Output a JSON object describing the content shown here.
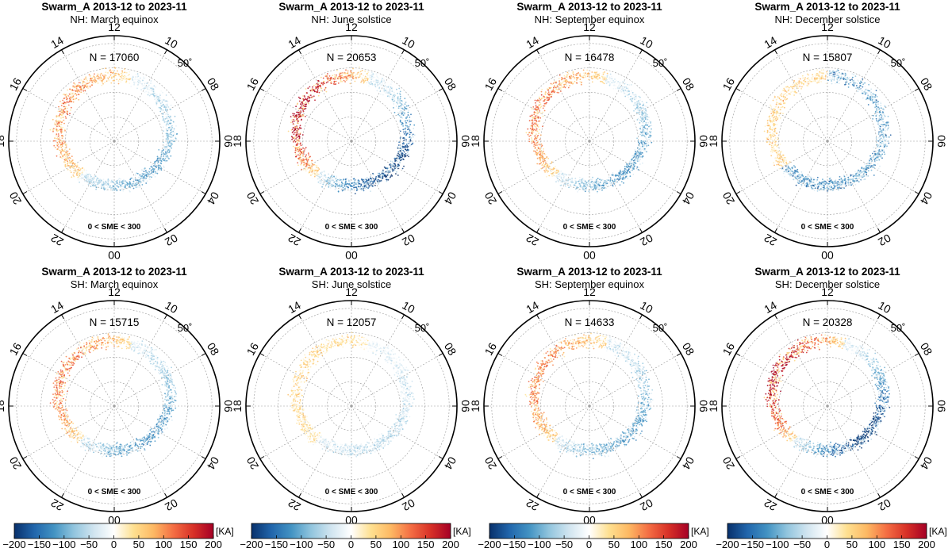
{
  "figure": {
    "panel_title": "Swarm_A 2013-12 to 2023-11",
    "hour_labels": [
      "12",
      "14",
      "16",
      "18",
      "20",
      "22",
      "00",
      "02",
      "04",
      "06",
      "08",
      "10"
    ],
    "latitude_label": "50˚",
    "condition": "0 < SME < 300"
  },
  "colorbar": {
    "unit": "[KA]",
    "tick_labels": [
      "−200",
      "−150",
      "−100",
      "−50",
      "0",
      "50",
      "100",
      "150",
      "200"
    ],
    "colors": [
      "#08306b",
      "#2166ac",
      "#4393c3",
      "#92c5de",
      "#d1e5f0",
      "#ffffff",
      "#fee090",
      "#fdb863",
      "#f46d43",
      "#d73027",
      "#a50026"
    ]
  },
  "chart_data": [
    {
      "type": "scatter",
      "title": "Swarm_A 2013-12 to 2023-11",
      "subtitle": "NH: March equinox",
      "annotation": "N = 17060",
      "condition": "0 < SME < 300",
      "axis": "magnetic local time (hours), polar",
      "lat_ring": "50˚",
      "clim": [
        -200,
        200
      ],
      "colorbar_label": "[KA]",
      "pattern": "positive (orange) on dusk side 12–21 MLT, negative (blue) on dawn/night side 22–10 MLT",
      "intensity": 0.35
    },
    {
      "type": "scatter",
      "title": "Swarm_A 2013-12 to 2023-11",
      "subtitle": "NH: June solstice",
      "annotation": "N = 20653",
      "condition": "0 < SME < 300",
      "axis": "magnetic local time (hours), polar",
      "lat_ring": "50˚",
      "clim": [
        -200,
        200
      ],
      "colorbar_label": "[KA]",
      "pattern": "strong positive (orange-red) on dayside 10–18 MLT, weak negative on night side",
      "intensity": 0.75
    },
    {
      "type": "scatter",
      "title": "Swarm_A 2013-12 to 2023-11",
      "subtitle": "NH: September equinox",
      "annotation": "N = 16478",
      "condition": "0 < SME < 300",
      "axis": "magnetic local time (hours), polar",
      "lat_ring": "50˚",
      "clim": [
        -200,
        200
      ],
      "colorbar_label": "[KA]",
      "pattern": "positive on dusk side 12–21 MLT, negative on dawn side 22–10 MLT",
      "intensity": 0.4
    },
    {
      "type": "scatter",
      "title": "Swarm_A 2013-12 to 2023-11",
      "subtitle": "NH: December solstice",
      "annotation": "N = 15807",
      "condition": "0 < SME < 300",
      "axis": "magnetic local time (hours), polar",
      "lat_ring": "50˚",
      "clim": [
        -200,
        200
      ],
      "colorbar_label": "[KA]",
      "pattern": "weak positive on dusk side, negative (blue) on night and dawn side",
      "intensity": 0.35
    },
    {
      "type": "scatter",
      "title": "Swarm_A 2013-12 to 2023-11",
      "subtitle": "SH: March equinox",
      "annotation": "N = 15715",
      "condition": "0 < SME < 300",
      "axis": "magnetic local time (hours), polar",
      "lat_ring": "50˚",
      "clim": [
        -200,
        200
      ],
      "colorbar_label": "[KA]",
      "pattern": "positive on dusk side 12–21 MLT, negative (blue) on dawn side 02–09 MLT",
      "intensity": 0.4
    },
    {
      "type": "scatter",
      "title": "Swarm_A 2013-12 to 2023-11",
      "subtitle": "SH: June solstice",
      "annotation": "N = 12057",
      "condition": "0 < SME < 300",
      "axis": "magnetic local time (hours), polar",
      "lat_ring": "50˚",
      "clim": [
        -200,
        200
      ],
      "colorbar_label": "[KA]",
      "pattern": "weak positive on dusk side, weak negative on night and dawn side",
      "intensity": 0.25
    },
    {
      "type": "scatter",
      "title": "Swarm_A 2013-12 to 2023-11",
      "subtitle": "SH: September equinox",
      "annotation": "N = 14633",
      "condition": "0 < SME < 300",
      "axis": "magnetic local time (hours), polar",
      "lat_ring": "50˚",
      "clim": [
        -200,
        200
      ],
      "colorbar_label": "[KA]",
      "pattern": "positive on dusk side 12–21 MLT, negative on dawn side 22–10 MLT",
      "intensity": 0.35
    },
    {
      "type": "scatter",
      "title": "Swarm_A 2013-12 to 2023-11",
      "subtitle": "SH: December solstice",
      "annotation": "N = 20328",
      "condition": "0 < SME < 300",
      "axis": "magnetic local time (hours), polar",
      "lat_ring": "50˚",
      "clim": [
        -200,
        200
      ],
      "colorbar_label": "[KA]",
      "pattern": "strong positive (orange-red) on dusk/day side 12–20 MLT, strong negative (blue) on dawn side 06–10 MLT",
      "intensity": 0.75
    }
  ]
}
